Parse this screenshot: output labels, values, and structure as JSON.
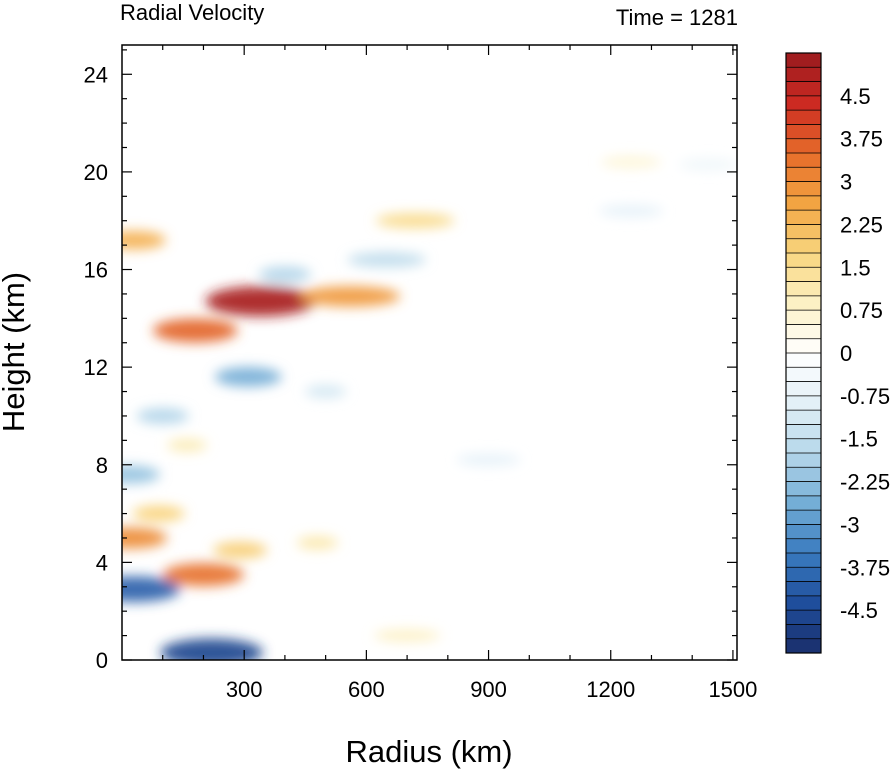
{
  "chart_data": {
    "type": "heatmap",
    "title": "Radial Velocity",
    "right_title": "Time = 1281",
    "xlabel": "Radius (km)",
    "ylabel": "Height (km)",
    "xlim": [
      0,
      1510
    ],
    "ylim": [
      0,
      25.2
    ],
    "x_ticks": [
      "300",
      "600",
      "900",
      "1200",
      "1500"
    ],
    "x_tick_values": [
      300,
      600,
      900,
      1200,
      1500
    ],
    "y_ticks": [
      "0",
      "4",
      "8",
      "12",
      "16",
      "20",
      "24"
    ],
    "y_tick_values": [
      0,
      4,
      8,
      12,
      16,
      20,
      24
    ],
    "colorbar": {
      "labels": [
        "4.5",
        "3.75",
        "3",
        "2.25",
        "1.5",
        "0.75",
        "0",
        "-0.75",
        "-1.5",
        "-2.25",
        "-3",
        "-3.75",
        "-4.5"
      ],
      "label_values": [
        4.5,
        3.75,
        3,
        2.25,
        1.5,
        0.75,
        0,
        -0.75,
        -1.5,
        -2.25,
        -3,
        -3.75,
        -4.5
      ],
      "range": [
        -5.25,
        5.25
      ],
      "step": 0.25,
      "colors": [
        "#1a2f6b",
        "#1f4e9c",
        "#3a7bbf",
        "#74aed6",
        "#b6d7ea",
        "#e3f0f7",
        "#ffffff",
        "#fcf1c4",
        "#f8d57e",
        "#f2a442",
        "#e66b2a",
        "#cc2a22",
        "#9a1b1e"
      ]
    },
    "features": [
      {
        "x": 340,
        "y": 14.7,
        "value": 5.0
      },
      {
        "x": 180,
        "y": 13.5,
        "value": 3.6
      },
      {
        "x": 560,
        "y": 14.9,
        "value": 2.8
      },
      {
        "x": 30,
        "y": 17.2,
        "value": 2.4
      },
      {
        "x": 720,
        "y": 18.0,
        "value": 1.6
      },
      {
        "x": 400,
        "y": 15.8,
        "value": -1.8
      },
      {
        "x": 650,
        "y": 16.4,
        "value": -1.6
      },
      {
        "x": 310,
        "y": 11.6,
        "value": -2.6
      },
      {
        "x": 500,
        "y": 11.0,
        "value": -1.2
      },
      {
        "x": 900,
        "y": 8.2,
        "value": -0.8
      },
      {
        "x": 1250,
        "y": 18.4,
        "value": -0.8
      },
      {
        "x": 1440,
        "y": 20.3,
        "value": -0.5
      },
      {
        "x": 1250,
        "y": 20.4,
        "value": 0.6
      },
      {
        "x": 30,
        "y": 2.9,
        "value": -4.0
      },
      {
        "x": 220,
        "y": 0.3,
        "value": -4.6
      },
      {
        "x": 20,
        "y": 5.0,
        "value": 3.0
      },
      {
        "x": 200,
        "y": 3.5,
        "value": 3.4
      },
      {
        "x": 290,
        "y": 4.5,
        "value": 1.9
      },
      {
        "x": 480,
        "y": 4.8,
        "value": 1.2
      },
      {
        "x": 20,
        "y": 7.6,
        "value": -2.2
      },
      {
        "x": 100,
        "y": 10.0,
        "value": -1.8
      },
      {
        "x": 90,
        "y": 6.0,
        "value": 1.8
      },
      {
        "x": 700,
        "y": 1.0,
        "value": 0.9
      },
      {
        "x": 160,
        "y": 8.8,
        "value": 1.1
      }
    ]
  }
}
